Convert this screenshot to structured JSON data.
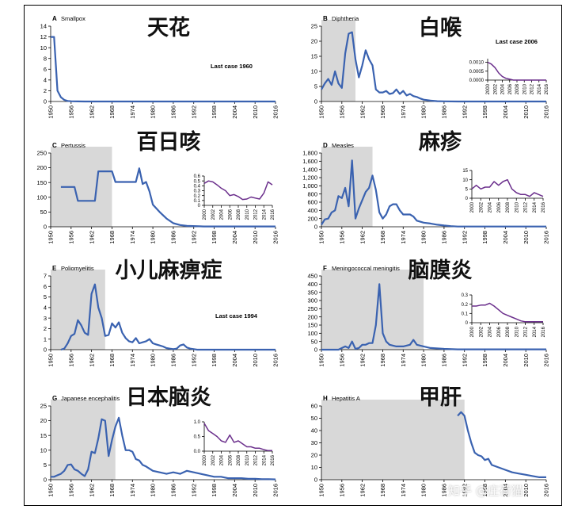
{
  "colors": {
    "series": "#3a62b0",
    "inset": "#6b2f8c",
    "shade": "#d8d8d8",
    "axis": "#000000",
    "text": "#000000"
  },
  "watermark": "知乎 @庄荷猫",
  "chart_data": [
    {
      "type": "line",
      "letter": "A",
      "title": "Smallpox",
      "chinese_title": "天花",
      "annotation": "Last case 1960",
      "xlim": [
        1950,
        2016
      ],
      "ylim": [
        0,
        14
      ],
      "xticks": [
        1950,
        1956,
        1962,
        1968,
        1974,
        1980,
        1986,
        1992,
        1998,
        2004,
        2010,
        2016
      ],
      "yticks": [
        0,
        2,
        4,
        6,
        8,
        10,
        12,
        14
      ],
      "ytick_labels": [
        "0",
        "2",
        "4",
        "6",
        "8",
        "10",
        "12",
        "14"
      ],
      "shade": null,
      "x": [
        1950,
        1951,
        1952,
        1953,
        1954,
        1955,
        1956,
        1958,
        1960,
        1962,
        2016
      ],
      "y": [
        12,
        12,
        2,
        0.8,
        0.3,
        0.1,
        0.05,
        0.02,
        0,
        0,
        0
      ],
      "inset": null
    },
    {
      "type": "line",
      "letter": "B",
      "title": "Diphtheria",
      "chinese_title": "白喉",
      "annotation": "Last case 2006",
      "xlim": [
        1950,
        2016
      ],
      "ylim": [
        0,
        25
      ],
      "xticks": [
        1950,
        1956,
        1962,
        1968,
        1974,
        1980,
        1986,
        1992,
        1998,
        2004,
        2010,
        2016
      ],
      "yticks": [
        0,
        5,
        10,
        15,
        20,
        25
      ],
      "ytick_labels": [
        "0",
        "5",
        "10",
        "15",
        "20",
        "25"
      ],
      "shade": [
        1950,
        1960
      ],
      "x": [
        1950,
        1951,
        1952,
        1953,
        1954,
        1955,
        1956,
        1957,
        1958,
        1959,
        1960,
        1961,
        1962,
        1963,
        1964,
        1965,
        1966,
        1967,
        1968,
        1969,
        1970,
        1971,
        1972,
        1973,
        1974,
        1975,
        1976,
        1977,
        1978,
        1979,
        1980,
        1982,
        1984,
        1986,
        1990,
        2016
      ],
      "y": [
        4,
        6,
        7.5,
        5.5,
        10,
        6,
        4.5,
        16,
        22.5,
        23,
        14,
        8,
        12,
        17,
        14,
        12,
        4,
        3,
        3,
        3.5,
        2.5,
        2.8,
        4,
        2.5,
        3.5,
        2,
        2.5,
        1.8,
        1.5,
        1,
        0.6,
        0.3,
        0.1,
        0.05,
        0,
        0
      ],
      "inset": {
        "xlim": [
          2000,
          2016
        ],
        "ylim": [
          0,
          0.0012
        ],
        "xticks": [
          2000,
          2002,
          2004,
          2006,
          2008,
          2010,
          2012,
          2014,
          2016
        ],
        "yticks": [
          0,
          0.0005,
          0.001
        ],
        "ytick_labels": [
          "0.0000",
          "0.0005",
          "0.0010"
        ],
        "x": [
          2000,
          2001,
          2002,
          2003,
          2004,
          2005,
          2006,
          2007,
          2008,
          2016
        ],
        "y": [
          0.001,
          0.0009,
          0.0007,
          0.0004,
          0.0002,
          0.0001,
          5e-05,
          0,
          0,
          0
        ]
      }
    },
    {
      "type": "line",
      "letter": "C",
      "title": "Pertussis",
      "chinese_title": "百日咳",
      "annotation": "",
      "xlim": [
        1950,
        2016
      ],
      "ylim": [
        0,
        250
      ],
      "xticks": [
        1950,
        1956,
        1962,
        1968,
        1974,
        1980,
        1986,
        1992,
        1998,
        2004,
        2010,
        2016
      ],
      "yticks": [
        0,
        50,
        100,
        150,
        200,
        250
      ],
      "ytick_labels": [
        "0",
        "50",
        "100",
        "150",
        "200",
        "250"
      ],
      "shade": [
        1950,
        1968
      ],
      "x": [
        1953,
        1957,
        1958,
        1962,
        1963,
        1964,
        1965,
        1968,
        1969,
        1972,
        1975,
        1976,
        1977,
        1978,
        1979,
        1980,
        1982,
        1984,
        1986,
        1988,
        1990,
        1995,
        2016
      ],
      "y": [
        135,
        135,
        88,
        88,
        88,
        188,
        188,
        188,
        152,
        152,
        152,
        198,
        145,
        152,
        120,
        75,
        50,
        28,
        12,
        6,
        3,
        1,
        1
      ],
      "inset": {
        "xlim": [
          2000,
          2016
        ],
        "ylim": [
          0,
          0.6
        ],
        "xticks": [
          2000,
          2002,
          2004,
          2006,
          2008,
          2010,
          2012,
          2014,
          2016
        ],
        "yticks": [
          0,
          0.1,
          0.2,
          0.3,
          0.4,
          0.5,
          0.6
        ],
        "ytick_labels": [
          "0",
          "0.1",
          "0.2",
          "0.3",
          "0.4",
          "0.5",
          "0.6"
        ],
        "x": [
          2000,
          2001,
          2002,
          2003,
          2004,
          2005,
          2006,
          2007,
          2008,
          2009,
          2010,
          2011,
          2012,
          2013,
          2014,
          2015,
          2016
        ],
        "y": [
          0.45,
          0.5,
          0.48,
          0.42,
          0.35,
          0.3,
          0.2,
          0.22,
          0.18,
          0.12,
          0.13,
          0.17,
          0.15,
          0.13,
          0.25,
          0.48,
          0.42
        ]
      }
    },
    {
      "type": "line",
      "letter": "D",
      "title": "Measles",
      "chinese_title": "麻疹",
      "annotation": "",
      "xlim": [
        1950,
        2016
      ],
      "ylim": [
        0,
        1800
      ],
      "xticks": [
        1950,
        1956,
        1962,
        1968,
        1974,
        1980,
        1986,
        1992,
        1998,
        2004,
        2010,
        2016
      ],
      "yticks": [
        0,
        200,
        400,
        600,
        800,
        1000,
        1200,
        1400,
        1600,
        1800
      ],
      "ytick_labels": [
        "0",
        "200",
        "400",
        "600",
        "800",
        "1,000",
        "1,200",
        "1,400",
        "1,600",
        "1,800"
      ],
      "shade": [
        1950,
        1965
      ],
      "x": [
        1950,
        1951,
        1952,
        1953,
        1954,
        1955,
        1956,
        1957,
        1958,
        1959,
        1960,
        1961,
        1962,
        1963,
        1964,
        1965,
        1966,
        1967,
        1968,
        1969,
        1970,
        1971,
        1972,
        1973,
        1974,
        1975,
        1976,
        1977,
        1978,
        1980,
        1982,
        1984,
        1986,
        1988,
        1990,
        2016
      ],
      "y": [
        50,
        180,
        200,
        350,
        400,
        750,
        700,
        950,
        500,
        1620,
        200,
        450,
        650,
        850,
        950,
        1250,
        900,
        350,
        200,
        300,
        500,
        550,
        550,
        400,
        300,
        300,
        300,
        250,
        150,
        100,
        80,
        50,
        30,
        15,
        5,
        5
      ],
      "inset": {
        "xlim": [
          2000,
          2016
        ],
        "ylim": [
          0,
          15
        ],
        "xticks": [
          2000,
          2002,
          2004,
          2006,
          2008,
          2010,
          2012,
          2014,
          2016
        ],
        "yticks": [
          0,
          5,
          10,
          15
        ],
        "ytick_labels": [
          "0",
          "5",
          "10",
          "15"
        ],
        "x": [
          2000,
          2001,
          2002,
          2003,
          2004,
          2005,
          2006,
          2007,
          2008,
          2009,
          2010,
          2011,
          2012,
          2013,
          2014,
          2015,
          2016
        ],
        "y": [
          5,
          7,
          5,
          6,
          6,
          9,
          7,
          9,
          10,
          5,
          3,
          2,
          2,
          1,
          3,
          2,
          1
        ]
      }
    },
    {
      "type": "line",
      "letter": "E",
      "title": "Poliomyelitis",
      "chinese_title": "小儿麻痹症",
      "annotation": "Last case 1994",
      "xlim": [
        1950,
        2016
      ],
      "ylim": [
        0,
        7
      ],
      "xticks": [
        1950,
        1956,
        1962,
        1968,
        1974,
        1980,
        1986,
        1992,
        1998,
        2004,
        2010,
        2016
      ],
      "yticks": [
        0,
        1,
        2,
        3,
        4,
        5,
        6,
        7
      ],
      "ytick_labels": [
        "0",
        "1",
        "2",
        "3",
        "4",
        "5",
        "6",
        "7"
      ],
      "shade": [
        1950,
        1966
      ],
      "x": [
        1953,
        1954,
        1955,
        1956,
        1957,
        1958,
        1959,
        1960,
        1961,
        1962,
        1963,
        1964,
        1965,
        1966,
        1967,
        1968,
        1969,
        1970,
        1971,
        1972,
        1973,
        1974,
        1975,
        1976,
        1977,
        1978,
        1979,
        1980,
        1981,
        1982,
        1983,
        1984,
        1985,
        1986,
        1987,
        1988,
        1989,
        1990,
        1991,
        1992,
        1993,
        1994,
        1995,
        2016
      ],
      "y": [
        0,
        0.1,
        0.6,
        1.3,
        1.5,
        2.8,
        2.3,
        1.6,
        1.4,
        5.3,
        6.2,
        4,
        3,
        1.3,
        1.4,
        2.5,
        2.1,
        2.6,
        1.6,
        1.1,
        0.8,
        0.7,
        1.1,
        0.6,
        0.7,
        0.8,
        1,
        0.6,
        0.5,
        0.4,
        0.3,
        0.15,
        0.1,
        0.05,
        0.1,
        0.4,
        0.5,
        0.2,
        0.1,
        0.05,
        0,
        0,
        0,
        0
      ],
      "inset": null
    },
    {
      "type": "line",
      "letter": "F",
      "title": "Meningococcal meningitis",
      "chinese_title": "脑膜炎",
      "annotation": "",
      "xlim": [
        1950,
        2016
      ],
      "ylim": [
        0,
        450
      ],
      "xticks": [
        1950,
        1956,
        1962,
        1968,
        1974,
        1980,
        1986,
        1992,
        1998,
        2004,
        2010,
        2016
      ],
      "yticks": [
        0,
        50,
        100,
        150,
        200,
        250,
        300,
        350,
        400,
        450
      ],
      "ytick_labels": [
        "0",
        "50",
        "100",
        "150",
        "200",
        "250",
        "300",
        "350",
        "400",
        "450"
      ],
      "shade": [
        1950,
        1980
      ],
      "x": [
        1950,
        1955,
        1957,
        1958,
        1959,
        1960,
        1961,
        1962,
        1963,
        1964,
        1965,
        1966,
        1967,
        1968,
        1969,
        1970,
        1972,
        1974,
        1976,
        1977,
        1978,
        1980,
        1982,
        1986,
        1990,
        2016
      ],
      "y": [
        0,
        0,
        20,
        10,
        50,
        5,
        10,
        30,
        30,
        40,
        40,
        150,
        400,
        100,
        50,
        30,
        20,
        20,
        30,
        60,
        30,
        20,
        10,
        5,
        2,
        2
      ],
      "inset": {
        "xlim": [
          2000,
          2016
        ],
        "ylim": [
          0,
          0.3
        ],
        "xticks": [
          2000,
          2002,
          2004,
          2006,
          2008,
          2010,
          2012,
          2014,
          2016
        ],
        "yticks": [
          0,
          0.1,
          0.2,
          0.3
        ],
        "ytick_labels": [
          "0",
          "0.1",
          "0.2",
          "0.3"
        ],
        "x": [
          2000,
          2001,
          2002,
          2003,
          2004,
          2005,
          2006,
          2007,
          2008,
          2009,
          2010,
          2011,
          2012,
          2013,
          2014,
          2015,
          2016
        ],
        "y": [
          0.18,
          0.18,
          0.19,
          0.19,
          0.21,
          0.18,
          0.14,
          0.1,
          0.08,
          0.06,
          0.04,
          0.02,
          0.01,
          0.01,
          0.01,
          0.01,
          0.01
        ]
      }
    },
    {
      "type": "line",
      "letter": "G",
      "title": "Japanese encephalitis",
      "chinese_title": "日本脑炎",
      "annotation": "",
      "xlim": [
        1950,
        2016
      ],
      "ylim": [
        0,
        25
      ],
      "xticks": [
        1950,
        1956,
        1962,
        1968,
        1974,
        1980,
        1986,
        1992,
        1998,
        2004,
        2010,
        2016
      ],
      "yticks": [
        0,
        5,
        10,
        15,
        20,
        25
      ],
      "ytick_labels": [
        "0",
        "5",
        "10",
        "15",
        "20",
        "25"
      ],
      "shade": [
        1950,
        1969
      ],
      "x": [
        1950,
        1951,
        1952,
        1953,
        1954,
        1955,
        1956,
        1957,
        1958,
        1959,
        1960,
        1961,
        1962,
        1963,
        1964,
        1965,
        1966,
        1967,
        1968,
        1969,
        1970,
        1971,
        1972,
        1973,
        1974,
        1975,
        1976,
        1977,
        1978,
        1980,
        1982,
        1984,
        1986,
        1988,
        1990,
        1992,
        1994,
        1996,
        1998,
        2000,
        2002,
        2004,
        2006,
        2008,
        2010,
        2012,
        2014,
        2016
      ],
      "y": [
        1,
        1,
        1.5,
        2,
        3,
        5,
        5.2,
        3.5,
        3,
        2,
        1.2,
        3.5,
        9.5,
        9,
        14,
        20.5,
        20,
        8,
        13.5,
        18,
        21,
        15,
        10,
        10,
        9.5,
        7,
        6.5,
        5,
        4.5,
        3,
        2.5,
        2,
        2.5,
        2,
        3,
        2.5,
        2,
        1.5,
        1,
        1,
        0.5,
        0.5,
        0.5,
        0.3,
        0.3,
        0.2,
        0.2,
        0.1
      ],
      "inset": {
        "xlim": [
          2000,
          2016
        ],
        "ylim": [
          0,
          1
        ],
        "xticks": [
          2000,
          2002,
          2004,
          2006,
          2008,
          2010,
          2012,
          2014,
          2016
        ],
        "yticks": [
          0,
          0.5,
          1
        ],
        "ytick_labels": [
          "0.0",
          "0.5",
          "1.0"
        ],
        "x": [
          2000,
          2001,
          2002,
          2003,
          2004,
          2005,
          2006,
          2007,
          2008,
          2009,
          2010,
          2011,
          2012,
          2013,
          2014,
          2015,
          2016
        ],
        "y": [
          0.95,
          0.7,
          0.6,
          0.5,
          0.35,
          0.3,
          0.55,
          0.3,
          0.35,
          0.25,
          0.15,
          0.15,
          0.1,
          0.1,
          0.05,
          0.02,
          0.02
        ]
      }
    },
    {
      "type": "line",
      "letter": "H",
      "title": "Hepatitis A",
      "chinese_title": "甲肝",
      "annotation": "",
      "xlim": [
        1950,
        2016
      ],
      "ylim": [
        0,
        60
      ],
      "xticks": [
        1950,
        1956,
        1962,
        1968,
        1974,
        1980,
        1986,
        1992,
        1998,
        2004,
        2010,
        2016
      ],
      "yticks": [
        0,
        10,
        20,
        30,
        40,
        50,
        60
      ],
      "ytick_labels": [
        "0",
        "10",
        "20",
        "30",
        "40",
        "50",
        "60"
      ],
      "shade": [
        1950,
        1992
      ],
      "x": [
        1990,
        1991,
        1992,
        1993,
        1994,
        1995,
        1996,
        1997,
        1998,
        1999,
        2000,
        2002,
        2004,
        2006,
        2008,
        2010,
        2012,
        2014,
        2016
      ],
      "y": [
        52,
        55,
        52,
        40,
        30,
        22,
        20,
        19,
        16,
        17,
        12,
        10,
        8,
        6,
        5,
        4,
        3,
        2,
        2
      ],
      "inset": null
    }
  ]
}
